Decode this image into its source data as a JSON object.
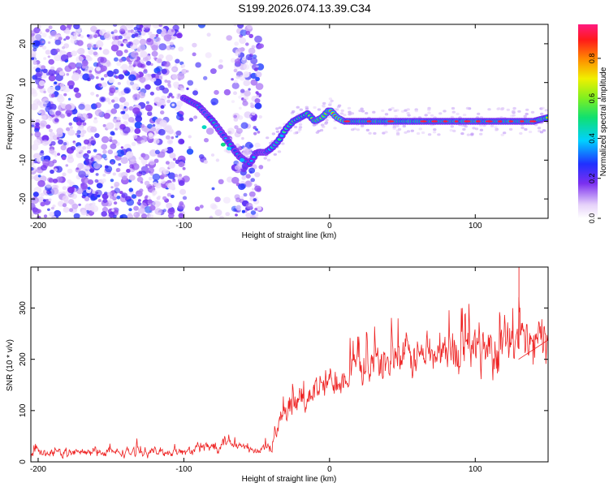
{
  "title": "S199.2026.074.13.39.C34",
  "chart_data": [
    {
      "type": "heatmap",
      "xlabel": "Height of straight line (km)",
      "ylabel": "Frequency (Hz)",
      "xlim": [
        -205,
        150
      ],
      "ylim": [
        -25,
        25
      ],
      "xticks": [
        -200,
        -100,
        0,
        100
      ],
      "yticks": [
        -20,
        -10,
        0,
        10,
        20
      ],
      "colorbar": {
        "label": "Normalized spectral amplitude",
        "range": [
          0.0,
          0.97
        ],
        "ticks": [
          0.0,
          0.2,
          0.4,
          0.6,
          0.8
        ]
      },
      "ridge": {
        "x": [
          -100,
          -90,
          -80,
          -70,
          -62,
          -55,
          -50,
          -44,
          -40,
          -35,
          -30,
          -25,
          -20,
          -15,
          -10,
          -5,
          0,
          5,
          10,
          20,
          40,
          60,
          80,
          100,
          120,
          140,
          150
        ],
        "y": [
          6,
          4,
          0,
          -5,
          -9,
          -11,
          -8,
          -8,
          -7,
          -5,
          -2,
          0,
          1,
          2,
          0,
          1,
          3,
          1,
          0,
          0,
          0,
          0,
          0,
          0,
          0,
          0,
          1
        ],
        "peak_amplitude": 0.95
      }
    },
    {
      "type": "line",
      "xlabel": "Height of straight line (km)",
      "ylabel": "SNR (10 * v/v)",
      "xlim": [
        -205,
        150
      ],
      "ylim": [
        0,
        380
      ],
      "xticks": [
        -200,
        -100,
        0,
        100
      ],
      "yticks": [
        0,
        100,
        200,
        300
      ],
      "color": "#ee2222",
      "trend": {
        "x": [
          -205,
          -150,
          -100,
          -80,
          -70,
          -60,
          -50,
          -40,
          -30,
          -20,
          -10,
          0,
          10,
          20,
          40,
          60,
          80,
          100,
          120,
          140,
          150
        ],
        "y": [
          18,
          18,
          20,
          30,
          45,
          28,
          18,
          35,
          90,
          120,
          140,
          155,
          170,
          185,
          195,
          205,
          215,
          220,
          225,
          230,
          235
        ]
      },
      "noise_amplitude": [
        12,
        12,
        12,
        18,
        22,
        14,
        12,
        20,
        40,
        45,
        45,
        45,
        45,
        50,
        55,
        60,
        65,
        70,
        75,
        80,
        80
      ],
      "max_spike": {
        "x": 130,
        "y": 380
      }
    }
  ]
}
